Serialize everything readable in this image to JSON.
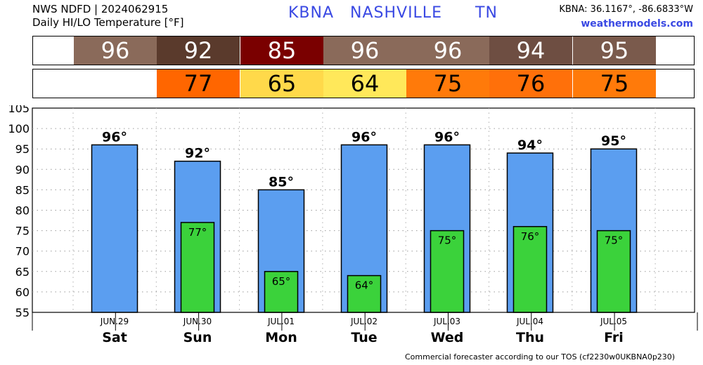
{
  "header": {
    "line1": "NWS NDFD | 2024062915",
    "line2": "Daily HI/LO Temperature [°F]",
    "station_code": "KBNA",
    "station_name": "NASHVILLE",
    "state": "TN",
    "coords": "KBNA: 36.1167°, -86.6833°W",
    "site": "weathermodels.com"
  },
  "footer": "Commercial forecaster according to our TOS (cf2230w0UKBNA0p230)",
  "colors": {
    "hi_bar": "#5b9ef0",
    "lo_bar": "#3bd23b",
    "title_blue": "#3a49e3"
  },
  "hi_strip": [
    {
      "text": "96",
      "bg": "#8a6a5a",
      "fg": "#ffffff"
    },
    {
      "text": "92",
      "bg": "#5a3a2c",
      "fg": "#ffffff"
    },
    {
      "text": "85",
      "bg": "#7a0000",
      "fg": "#ffffff"
    },
    {
      "text": "96",
      "bg": "#8a6a5a",
      "fg": "#ffffff"
    },
    {
      "text": "96",
      "bg": "#8a6a5a",
      "fg": "#ffffff"
    },
    {
      "text": "94",
      "bg": "#6e4e42",
      "fg": "#ffffff"
    },
    {
      "text": "95",
      "bg": "#7a5a4c",
      "fg": "#ffffff"
    }
  ],
  "lo_strip": [
    {
      "text": "",
      "bg": "#ffffff",
      "fg": "#000000"
    },
    {
      "text": "77",
      "bg": "#ff6600",
      "fg": "#000000"
    },
    {
      "text": "65",
      "bg": "#ffd94a",
      "fg": "#000000"
    },
    {
      "text": "64",
      "bg": "#ffe85a",
      "fg": "#000000"
    },
    {
      "text": "75",
      "bg": "#ff7a0a",
      "fg": "#000000"
    },
    {
      "text": "76",
      "bg": "#ff700a",
      "fg": "#000000"
    },
    {
      "text": "75",
      "bg": "#ff7a0a",
      "fg": "#000000"
    }
  ],
  "chart_data": {
    "type": "bar",
    "categories": [
      "Sat",
      "Sun",
      "Mon",
      "Tue",
      "Wed",
      "Thu",
      "Fri"
    ],
    "dates": [
      "JUN.29",
      "JUN.30",
      "JUL.01",
      "JUL.02",
      "JUL.03",
      "JUL.04",
      "JUL.05"
    ],
    "series": [
      {
        "values": [
          96,
          92,
          85,
          96,
          96,
          94,
          95
        ],
        "labels": [
          "96°",
          "92°",
          "85°",
          "96°",
          "96°",
          "94°",
          "95°"
        ]
      },
      {
        "values": [
          null,
          77,
          65,
          64,
          75,
          76,
          75
        ],
        "labels": [
          "",
          "77°",
          "65°",
          "64°",
          "75°",
          "76°",
          "75°"
        ]
      }
    ],
    "ylim": [
      55,
      105
    ],
    "yticks": [
      "55",
      "60",
      "65",
      "70",
      "75",
      "80",
      "85",
      "90",
      "95",
      "100",
      "105"
    ],
    "grid": true
  }
}
